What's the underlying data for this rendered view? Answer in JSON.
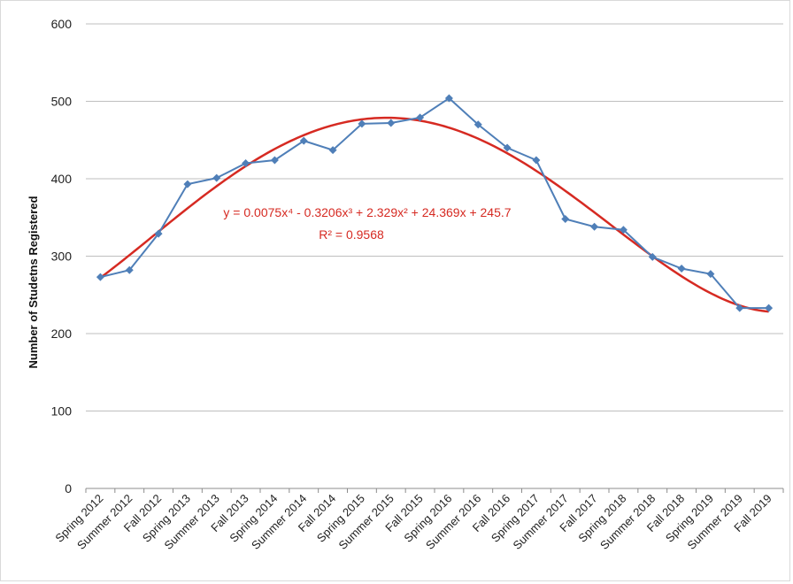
{
  "chart_data": {
    "type": "line",
    "title": "",
    "xlabel": "",
    "ylabel": "Number of Studetns Registered",
    "ylim": [
      0,
      600
    ],
    "yticks": [
      0,
      100,
      200,
      300,
      400,
      500,
      600
    ],
    "grid": true,
    "legend": "none",
    "categories": [
      "Spring 2012",
      "Summer 2012",
      "Fall 2012",
      "Spring 2013",
      "Summer 2013",
      "Fall 2013",
      "Spring 2014",
      "Summer 2014",
      "Fall 2014",
      "Spring 2015",
      "Summer 2015",
      "Fall 2015",
      "Spring 2016",
      "Summer 2016",
      "Fall 2016",
      "Spring 2017",
      "Summer 2017",
      "Fall 2017",
      "Spring 2018",
      "Summer 2018",
      "Fall 2018",
      "Spring 2019",
      "Summer 2019",
      "Fall 2019"
    ],
    "series": [
      {
        "values": [
          273,
          282,
          329,
          393,
          401,
          420,
          424,
          449,
          437,
          471,
          472,
          479,
          504,
          470,
          440,
          424,
          348,
          338,
          334,
          299,
          284,
          277,
          233,
          233
        ],
        "color": "#4f7fb8",
        "marker": "diamond"
      }
    ],
    "trendline": {
      "type": "polynomial",
      "order": 4,
      "coefficients": [
        0.0075,
        -0.3206,
        2.329,
        24.369,
        245.7
      ],
      "color": "#d62a22",
      "equation_text": "y = 0.0075x⁴ - 0.3206x³ + 2.329x² + 24.369x + 245.7",
      "r2_text": "R² = 0.9568"
    }
  }
}
